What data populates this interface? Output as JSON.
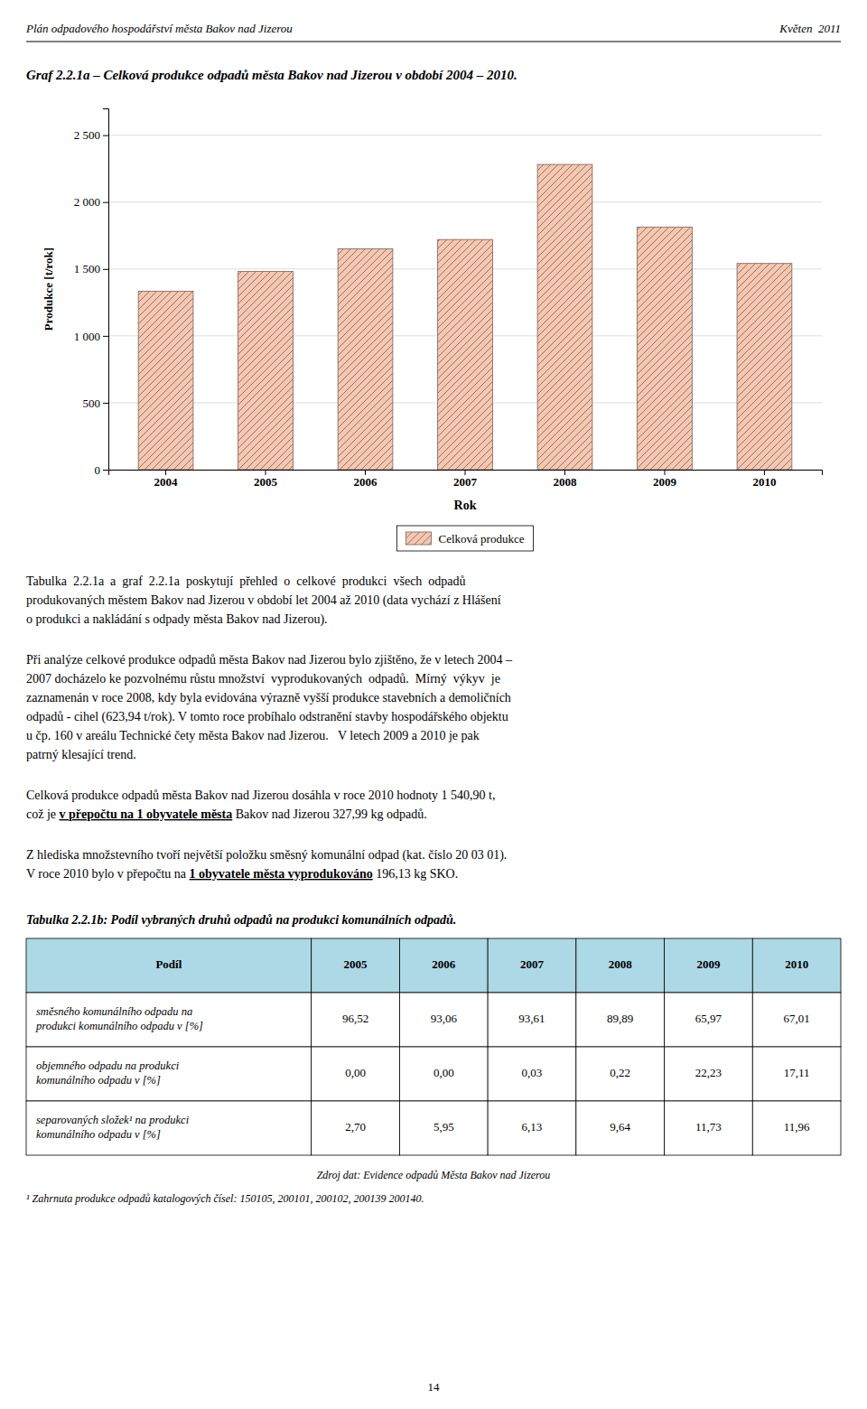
{
  "page_header": {
    "left": "Plán odpadového hospodářství města Bakov nad Jizerou",
    "right": "Květen  2011"
  },
  "chart_data": {
    "type": "bar",
    "title": "Graf 2.2.1a – Celková produkce odpadů města Bakov nad Jizerou v období 2004 – 2010.",
    "xlabel": "Rok",
    "ylabel": "Produkce [t/rok]",
    "categories": [
      "2004",
      "2005",
      "2006",
      "2007",
      "2008",
      "2009",
      "2010"
    ],
    "series": [
      {
        "name": "Celková produkce",
        "color": "#f5c6b0",
        "values": [
          1334,
          1481,
          1651,
          1720,
          2281,
          1812,
          1541
        ]
      }
    ],
    "ylim": [
      0,
      2700
    ],
    "yticks": [
      0,
      500,
      {
        "value": 1000,
        "label": "1 000"
      },
      {
        "value": 1500,
        "label": "1 500"
      },
      {
        "value": 2000,
        "label": "2 000"
      },
      {
        "value": 2500,
        "label": "2 500"
      }
    ],
    "grid": true,
    "legend": "bottom"
  },
  "paragraphs": [
    [
      [
        {
          "text": "Tabulka  2.2.1a  a  graf  2.2.1a  poskytují  přehled  o  celkové  produkci  všech  odpadů"
        }
      ],
      [
        {
          "text": "produkovaných městem Bakov nad Jizerou v období let 2004 až 2010 (data vychází z Hlášení"
        }
      ],
      [
        {
          "text": "o produkci a nakládání s odpady města Bakov nad Jizerou)."
        }
      ]
    ],
    [
      [
        {
          "text": "Při analýze celkové produkce odpadů města Bakov nad Jizerou bylo zjištěno, že v letech 2004 –"
        }
      ],
      [
        {
          "text": "2007 docházelo ke pozvolnému růstu množství  vyprodukovaných  odpadů.  Mírný  výkyv  je"
        }
      ],
      [
        {
          "text": "zaznamenán v roce 2008, kdy byla evidována výrazně vyšší produkce stavebních a demoličních"
        }
      ],
      [
        {
          "text": "odpadů - cihel (623,94 t/rok). V tomto roce probíhalo odstranění stavby hospodářského objektu"
        }
      ],
      [
        {
          "text": "u čp. 160 v areálu Technické čety města Bakov nad Jizerou.   V letech 2009 a 2010 je pak"
        }
      ],
      [
        {
          "text": "patrný klesající trend."
        }
      ]
    ],
    [
      [
        {
          "text": "Celková produkce odpadů města Bakov nad Jizerou dosáhla v roce 2010 hodnoty 1 540,90 t,"
        }
      ],
      [
        {
          "text": "což je "
        },
        {
          "text": "v přepočtu na 1 obyvatele města",
          "strong": true
        },
        {
          "text": " Bakov nad Jizerou 327,99 kg odpadů."
        }
      ]
    ],
    [
      [
        {
          "text": "Z hlediska množstevního tvoří největší položku směsný komunální odpad (kat. číslo 20 03 01)."
        }
      ],
      [
        {
          "text": "V roce 2010 bylo v přepočtu na "
        },
        {
          "text": "1 obyvatele města vyprodukováno",
          "strong": true
        },
        {
          "text": " 196,13 kg SKO."
        }
      ]
    ]
  ],
  "table": {
    "title": "Tabulka 2.2.1b: Podíl vybraných druhů odpadů na produkci komunálních odpadů.",
    "header_color": "#add8e6",
    "headers": [
      "Podíl",
      "2005",
      "2006",
      "2007",
      "2008",
      "2009",
      "2010"
    ],
    "rows": [
      {
        "label": "směsného komunálního odpadu na\nprodukci komunálního odpadu v [%]",
        "values": [
          "96,52",
          "93,06",
          "93,61",
          "89,89",
          "65,97",
          "67,01"
        ]
      },
      {
        "label": "objemného odpadu na produkci\nkomunálního odpadu v [%]",
        "values": [
          "0,00",
          "0,00",
          "0,03",
          "0,22",
          "22,23",
          "17,11"
        ]
      },
      {
        "label": "separovaných složek¹ na produkci\nkomunálního odpadu v [%]",
        "values": [
          "2,70",
          "5,95",
          "6,13",
          "9,64",
          "11,73",
          "11,96"
        ]
      }
    ]
  },
  "source_note": "Zdroj dat: Evidence odpadů Města Bakov nad Jizerou",
  "footnote": "¹ Zahrnuta produkce odpadů katalogových čísel: 150105, 200101, 200102, 200139 200140.",
  "page_number": "14"
}
